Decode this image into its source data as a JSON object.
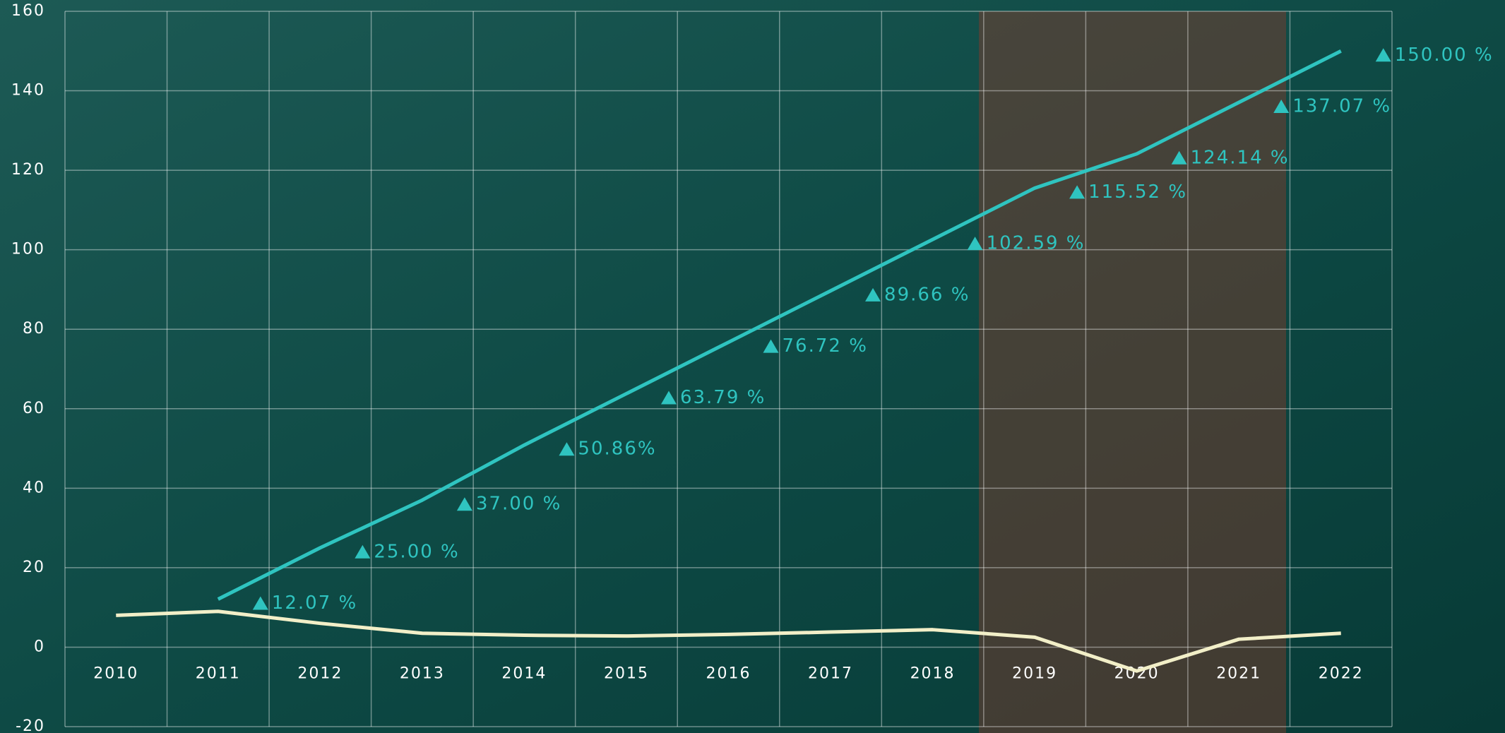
{
  "chart_data": {
    "type": "line",
    "categories": [
      "2010",
      "2011",
      "2012",
      "2013",
      "2014",
      "2015",
      "2016",
      "2017",
      "2018",
      "2019",
      "2020",
      "2021",
      "2022"
    ],
    "series": [
      {
        "color": "#2fc4c0",
        "values": [
          null,
          12.07,
          25.0,
          37.0,
          50.86,
          63.79,
          76.72,
          89.66,
          102.59,
          115.52,
          124.14,
          137.07,
          150.0
        ],
        "value_labels": [
          null,
          "12.07 %",
          "25.00 %",
          "37.00 %",
          "50.86%",
          "63.79 %",
          "76.72 %",
          "89.66 %",
          "102.59 %",
          "115.52 %",
          "124.14 %",
          "137.07 %",
          "150.00 %"
        ]
      },
      {
        "color": "#f2efc8",
        "values": [
          8,
          9,
          6,
          3.5,
          3,
          2.8,
          3.2,
          3.8,
          4.4,
          2.5,
          -6,
          2,
          3.5
        ]
      }
    ],
    "ylim": [
      -20,
      160
    ],
    "yticks": [
      -20,
      0,
      20,
      40,
      60,
      80,
      100,
      120,
      140,
      160
    ],
    "grid": true
  }
}
